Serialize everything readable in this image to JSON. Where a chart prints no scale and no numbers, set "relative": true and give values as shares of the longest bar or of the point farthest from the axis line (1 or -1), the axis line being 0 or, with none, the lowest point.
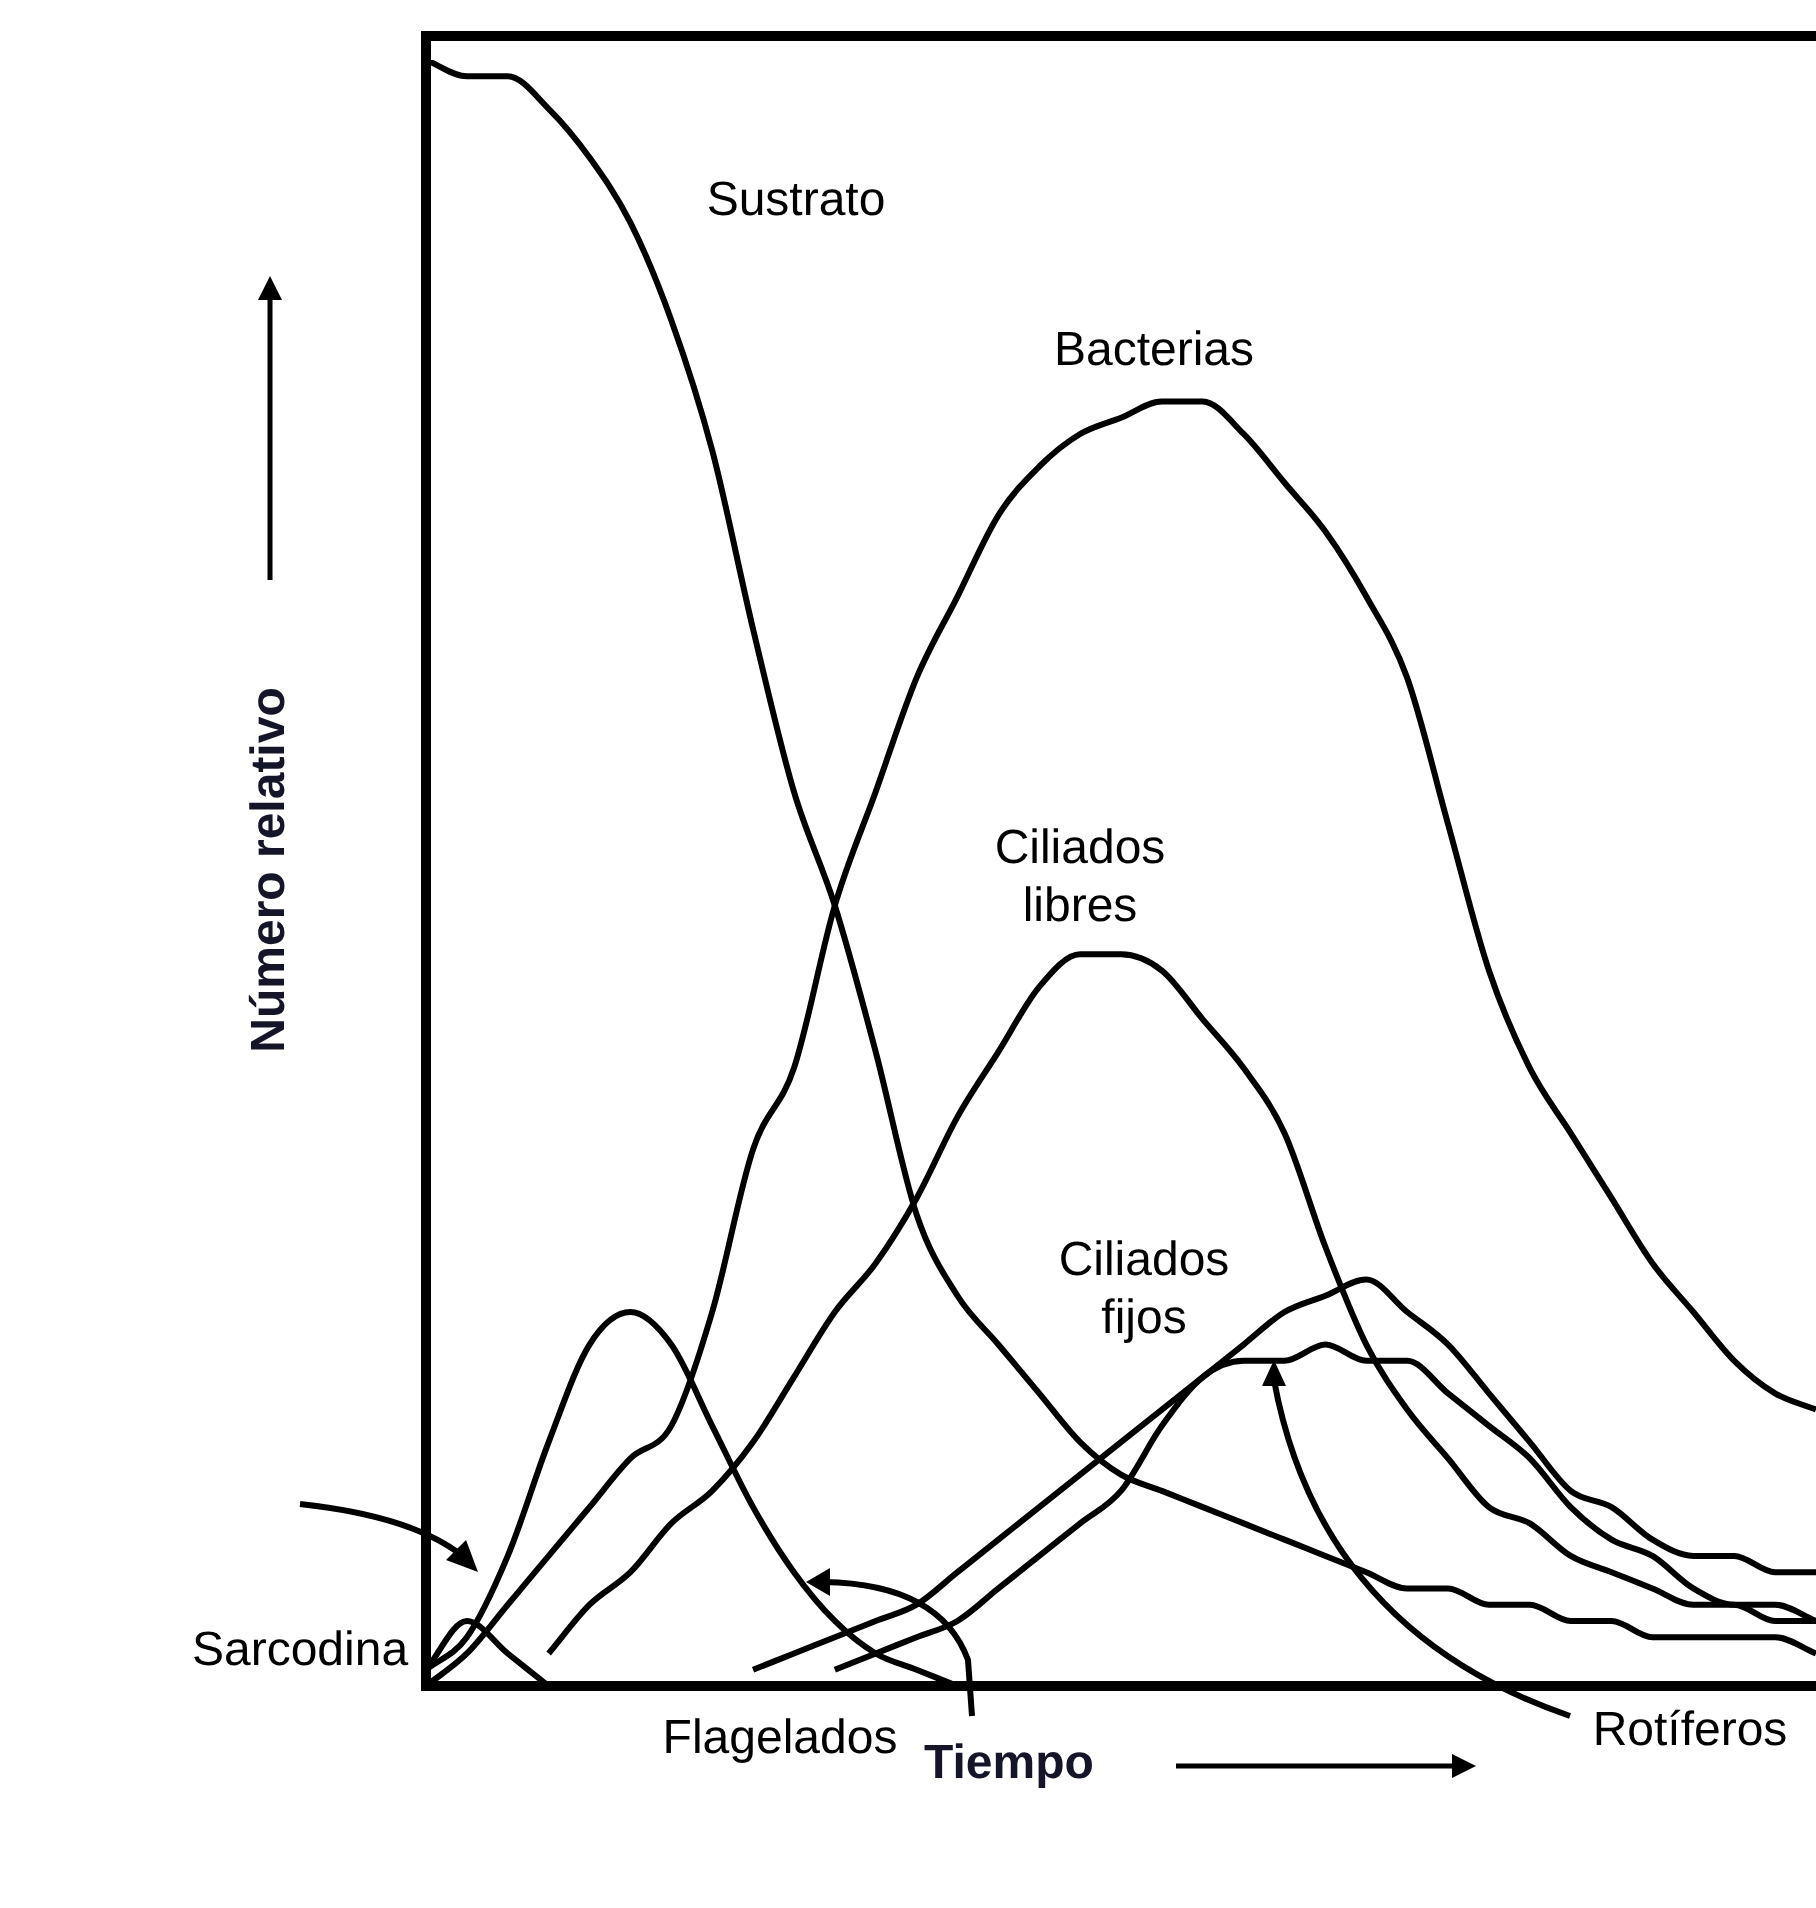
{
  "chart_data": {
    "type": "line",
    "relative": true,
    "xlabel": "Tiempo",
    "ylabel": "Número relativo",
    "legend": false,
    "marker": "none",
    "categories": [
      null,
      null,
      null,
      null,
      null,
      null,
      null,
      null,
      null,
      null,
      null,
      null,
      null,
      null,
      null,
      null,
      null,
      null,
      null,
      null,
      null,
      null,
      null,
      null,
      null,
      null,
      null,
      null,
      null,
      null,
      null,
      null,
      null,
      null,
      null
    ],
    "series": [
      {
        "name": "Sustrato",
        "color": "#000000",
        "values": [
          1,
          0.99,
          0.99,
          0.97,
          0.94,
          0.9,
          0.84,
          0.76,
          0.65,
          0.55,
          0.48,
          0.39,
          0.29,
          0.24,
          0.21,
          0.18,
          0.15,
          0.13,
          0.12,
          0.11,
          0.1,
          0.09,
          0.08,
          0.07,
          0.06,
          0.06,
          0.05,
          0.05,
          0.04,
          0.04,
          0.03,
          0.03,
          0.03,
          0.03,
          0.02
        ]
      },
      {
        "name": "Bacterias",
        "color": "#000000",
        "values": [
          0,
          0.02,
          0.05,
          0.08,
          0.11,
          0.14,
          0.16,
          0.23,
          0.33,
          0.38,
          0.48,
          0.55,
          0.62,
          0.67,
          0.72,
          0.75,
          0.77,
          0.78,
          0.79,
          0.79,
          0.77,
          0.74,
          0.71,
          0.67,
          0.62,
          0.53,
          0.44,
          0.38,
          0.34,
          0.3,
          0.26,
          0.23,
          0.2,
          0.18,
          0.17
        ]
      },
      {
        "name": "Ciliados libres",
        "color": "#000000",
        "values": [
          null,
          null,
          null,
          0.02,
          0.05,
          0.07,
          0.1,
          0.12,
          0.15,
          0.19,
          0.23,
          0.26,
          0.3,
          0.35,
          0.39,
          0.43,
          0.45,
          0.45,
          0.44,
          0.41,
          0.38,
          0.34,
          0.27,
          0.21,
          0.17,
          0.14,
          0.11,
          0.1,
          0.08,
          0.07,
          0.06,
          0.05,
          0.05,
          0.04,
          0.04
        ]
      },
      {
        "name": "Ciliados fijos",
        "color": "#000000",
        "values": [
          null,
          null,
          null,
          null,
          null,
          null,
          null,
          null,
          0.01,
          0.02,
          0.03,
          0.04,
          0.05,
          0.07,
          0.09,
          0.11,
          0.13,
          0.15,
          0.17,
          0.19,
          0.21,
          0.23,
          0.24,
          0.25,
          0.23,
          0.21,
          0.18,
          0.15,
          0.12,
          0.11,
          0.09,
          0.08,
          0.08,
          0.07,
          0.07
        ]
      },
      {
        "name": "Rotíferos",
        "color": "#000000",
        "values": [
          null,
          null,
          null,
          null,
          null,
          null,
          null,
          null,
          null,
          null,
          0.01,
          0.02,
          0.03,
          0.04,
          0.06,
          0.08,
          0.1,
          0.12,
          0.16,
          0.19,
          0.2,
          0.2,
          0.21,
          0.2,
          0.2,
          0.18,
          0.16,
          0.14,
          0.11,
          0.09,
          0.08,
          0.06,
          0.05,
          0.05,
          0.04
        ]
      },
      {
        "name": "Flagelados",
        "color": "#000000",
        "values": [
          0.01,
          0.03,
          0.08,
          0.15,
          0.21,
          0.23,
          0.21,
          0.16,
          0.11,
          0.07,
          0.04,
          0.02,
          0.01,
          0,
          null,
          null,
          null,
          null,
          null,
          null,
          null,
          null,
          null,
          null,
          null,
          null,
          null,
          null,
          null,
          null,
          null,
          null,
          null,
          null,
          null
        ]
      },
      {
        "name": "Sarcodina",
        "color": "#000000",
        "values": [
          0.01,
          0.04,
          0.02,
          0,
          null,
          null,
          null,
          null,
          null,
          null,
          null,
          null,
          null,
          null,
          null,
          null,
          null,
          null,
          null,
          null,
          null,
          null,
          null,
          null,
          null,
          null,
          null,
          null,
          null,
          null,
          null,
          null,
          null,
          null,
          null
        ]
      }
    ]
  }
}
